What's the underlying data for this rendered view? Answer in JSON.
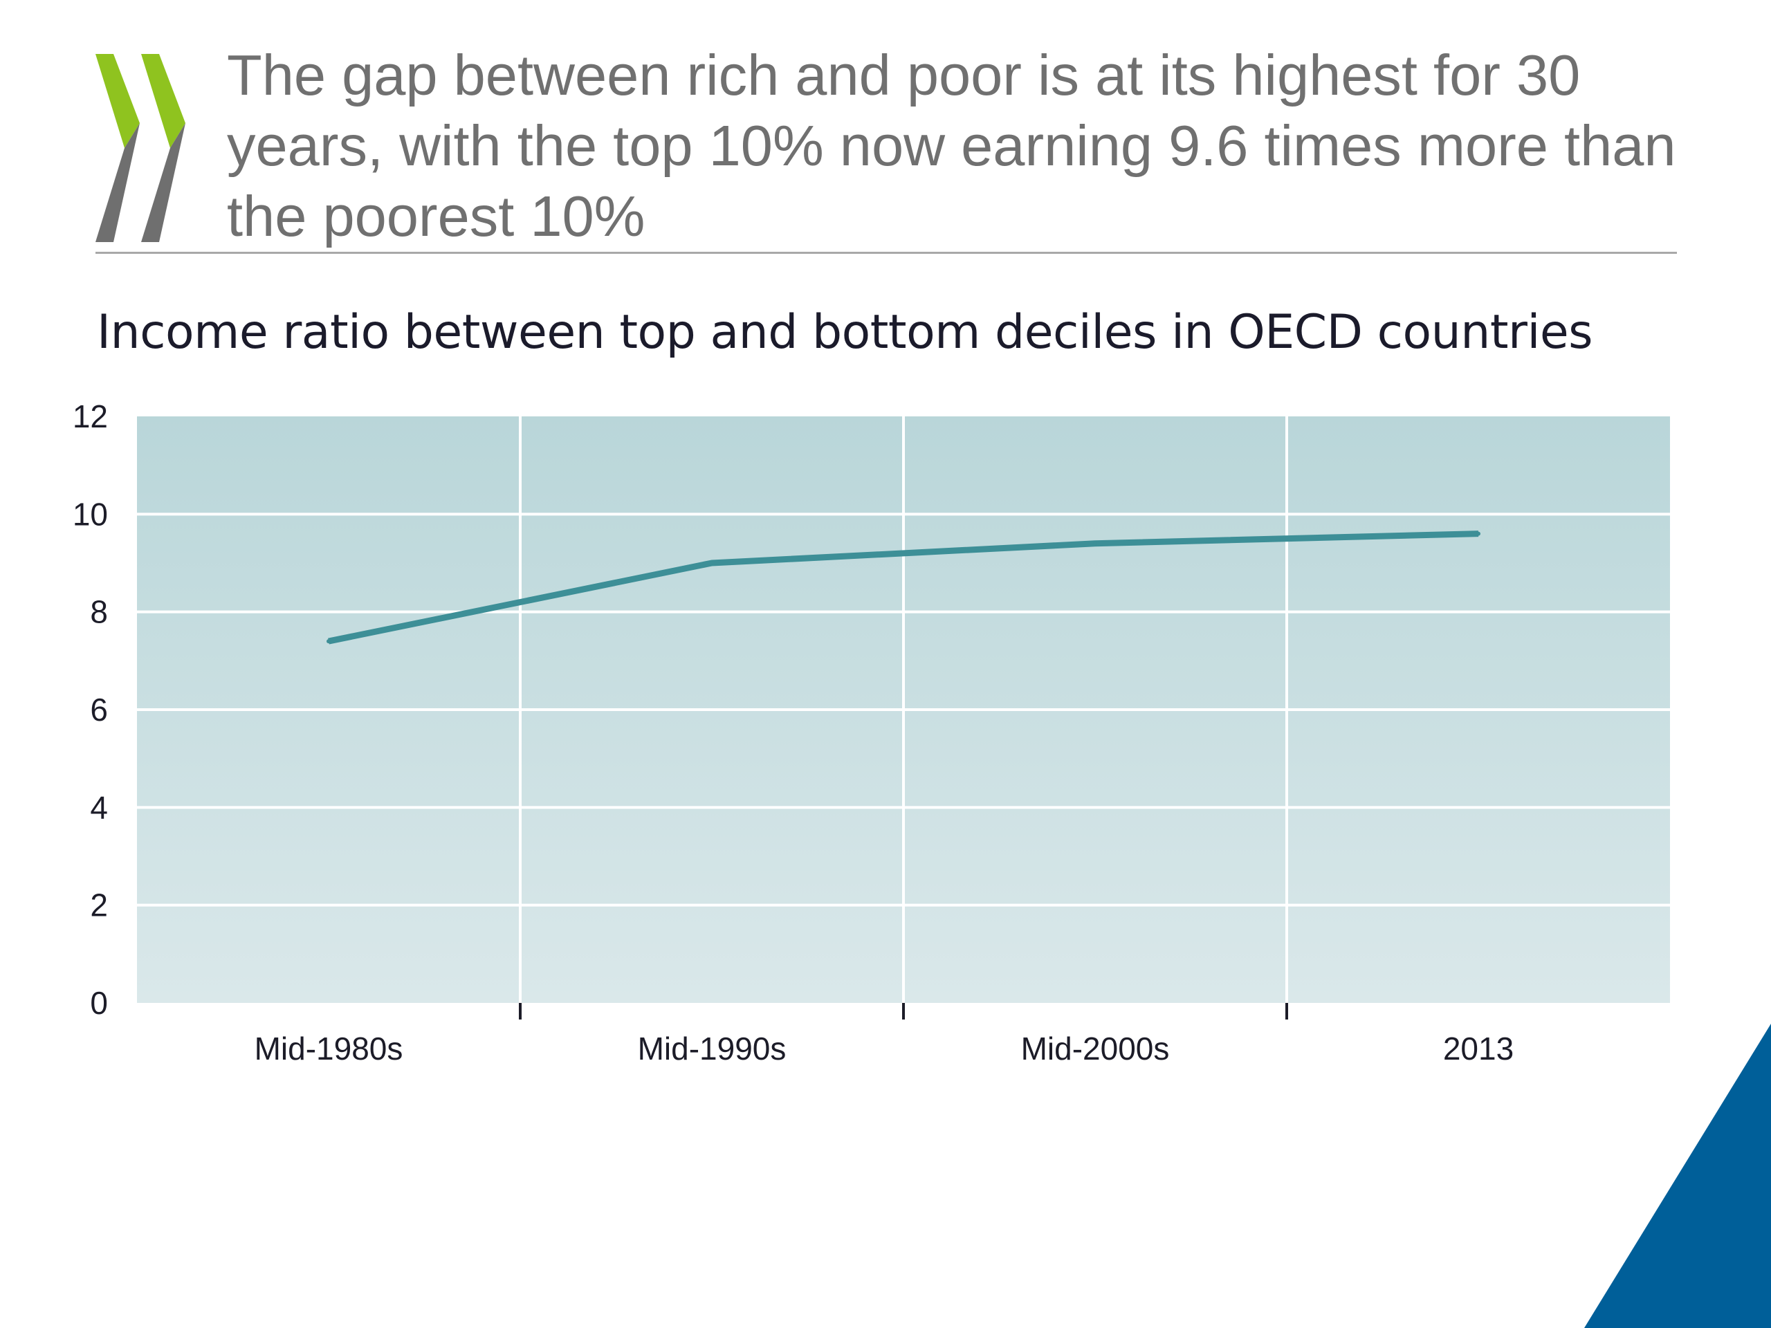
{
  "headline": "The gap between rich and poor is at its highest for 30 years, with the top 10% now earning 9.6 times more than the poorest 10%",
  "colors": {
    "headline_text": "#707070",
    "logo_green": "#8fc31f",
    "logo_gray": "#6f6f6f",
    "series_line": "#3d8f97",
    "plot_bg_top": "#b9d6d9",
    "plot_bg_bottom": "#dae8ea",
    "corner_triangle": "#005f99"
  },
  "chart_data": {
    "type": "line",
    "title": "Income ratio between top and bottom deciles in OECD countries",
    "categories": [
      "Mid-1980s",
      "Mid-1990s",
      "Mid-2000s",
      "2013"
    ],
    "series": [
      {
        "values": [
          7.4,
          9.0,
          9.4,
          9.6
        ]
      }
    ],
    "xlabel": "",
    "ylabel": "",
    "ylim": [
      0,
      12
    ],
    "yticks": [
      0,
      2,
      4,
      6,
      8,
      10,
      12
    ],
    "grid": true,
    "legend": "none"
  }
}
